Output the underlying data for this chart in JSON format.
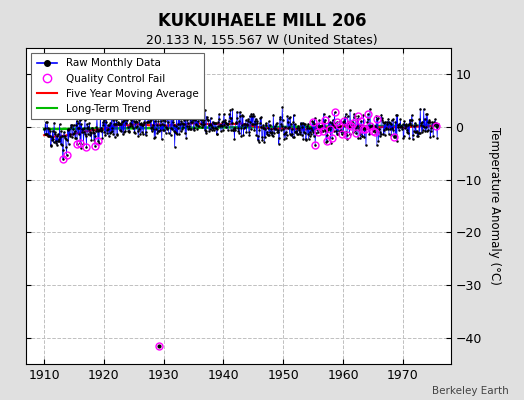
{
  "title": "KUKUIHAELE MILL 206",
  "subtitle": "20.133 N, 155.567 W (United States)",
  "ylabel": "Temperature Anomaly (°C)",
  "credit": "Berkeley Earth",
  "xlim": [
    1907,
    1978
  ],
  "ylim": [
    -45,
    15
  ],
  "yticks": [
    10,
    0,
    -10,
    -20,
    -30,
    -40
  ],
  "xticks": [
    1910,
    1920,
    1930,
    1940,
    1950,
    1960,
    1970
  ],
  "bg_color": "#e0e0e0",
  "plot_bg_color": "#ffffff",
  "grid_color": "#c0c0c0",
  "raw_color": "#0000ff",
  "raw_dot_color": "#000000",
  "qc_color": "#ff00ff",
  "mavg_color": "#ff0000",
  "trend_color": "#00bb00",
  "year_start": 1910.0,
  "year_end": 1975.917,
  "outlier_year": 1929.25,
  "outlier_val": -41.5,
  "seed": 42
}
